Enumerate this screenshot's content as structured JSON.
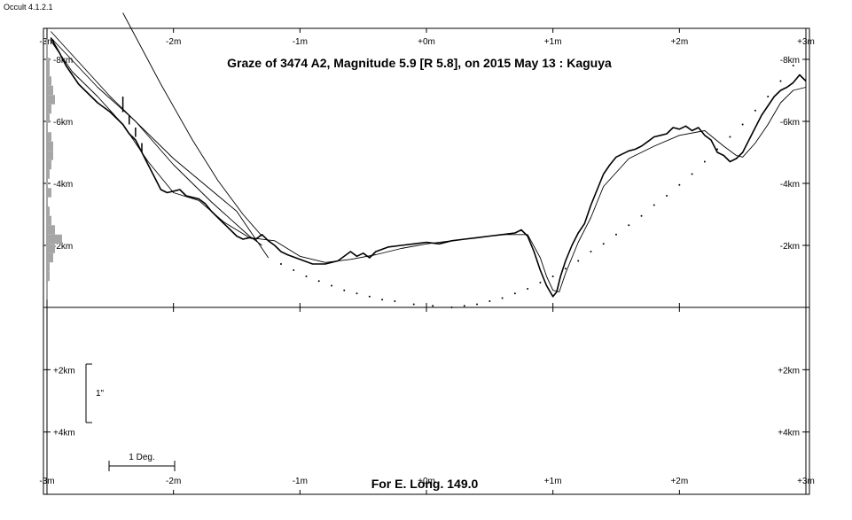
{
  "app": {
    "title": "Occult 4.1.2.1"
  },
  "chart_data": {
    "type": "line",
    "title": "Graze of  3474 A2,  Magnitude 5.9 [R 5.8],  on 2015 May 13  :  Kaguya",
    "footer": "For E. Long. 149.0",
    "x_ticks": [
      "-3m",
      "-2m",
      "-1m",
      "+0m",
      "+1m",
      "+2m",
      "+3m"
    ],
    "x_tick_values": [
      -3,
      -2,
      -1,
      0,
      1,
      2,
      3
    ],
    "xlim": [
      -3,
      3
    ],
    "upper_y_ticks": [
      "-8km",
      "-6km",
      "-4km",
      "-2km"
    ],
    "upper_y_values": [
      -8,
      -6,
      -4,
      -2
    ],
    "upper_ylim": [
      -9,
      0
    ],
    "lower_y_ticks": [
      "+2km",
      "+4km"
    ],
    "lower_y_values": [
      2,
      4
    ],
    "lower_ylim": [
      0,
      6
    ],
    "scale_bar_vertical": "1\"",
    "scale_bar_horizontal": "1 Deg.",
    "series": [
      {
        "type": "line",
        "x": [
          -2.97,
          -2.9,
          -2.85,
          -2.8,
          -2.75,
          -2.7,
          -2.6,
          -2.5,
          -2.45,
          -2.4,
          -2.35,
          -2.3,
          -2.25,
          -2.2,
          -2.15,
          -2.1,
          -2.05,
          -2.0,
          -1.95,
          -1.9,
          -1.85,
          -1.8,
          -1.75,
          -1.7,
          -1.65,
          -1.6,
          -1.55,
          -1.5,
          -1.45,
          -1.4,
          -1.35,
          -1.3,
          -1.25,
          -1.2,
          -1.15,
          -1.1,
          -1.0,
          -0.9,
          -0.8,
          -0.7,
          -0.6,
          -0.55,
          -0.5,
          -0.45,
          -0.4,
          -0.3,
          -0.2,
          -0.1,
          0.0,
          0.1,
          0.2,
          0.3,
          0.4,
          0.5,
          0.6,
          0.7,
          0.75,
          0.8,
          0.85,
          0.9,
          0.95,
          1.0,
          1.03,
          1.06,
          1.1,
          1.15,
          1.2,
          1.25,
          1.3,
          1.35,
          1.4,
          1.45,
          1.5,
          1.55,
          1.6,
          1.65,
          1.7,
          1.75,
          1.8,
          1.85,
          1.9,
          1.95,
          2.0,
          2.05,
          2.1,
          2.15,
          2.2,
          2.25,
          2.3,
          2.35,
          2.4,
          2.45,
          2.5,
          2.55,
          2.6,
          2.65,
          2.7,
          2.75,
          2.8,
          2.85,
          2.9,
          2.95,
          3.0
        ],
        "y": [
          -8.7,
          -8.2,
          -7.8,
          -7.5,
          -7.2,
          -7.0,
          -6.6,
          -6.3,
          -6.1,
          -5.9,
          -5.6,
          -5.4,
          -5.0,
          -4.6,
          -4.2,
          -3.8,
          -3.7,
          -3.75,
          -3.8,
          -3.6,
          -3.55,
          -3.5,
          -3.35,
          -3.1,
          -2.9,
          -2.7,
          -2.5,
          -2.3,
          -2.2,
          -2.25,
          -2.2,
          -2.35,
          -2.15,
          -2.0,
          -1.8,
          -1.7,
          -1.55,
          -1.4,
          -1.4,
          -1.5,
          -1.8,
          -1.65,
          -1.75,
          -1.6,
          -1.8,
          -1.95,
          -2.0,
          -2.05,
          -2.1,
          -2.05,
          -2.15,
          -2.2,
          -2.25,
          -2.3,
          -2.35,
          -2.4,
          -2.5,
          -2.3,
          -1.8,
          -1.2,
          -0.7,
          -0.35,
          -0.5,
          -1.0,
          -1.5,
          -2.0,
          -2.4,
          -2.7,
          -3.3,
          -3.8,
          -4.3,
          -4.6,
          -4.85,
          -4.95,
          -5.05,
          -5.1,
          -5.2,
          -5.35,
          -5.5,
          -5.55,
          -5.6,
          -5.8,
          -5.75,
          -5.85,
          -5.7,
          -5.8,
          -5.55,
          -5.4,
          -5.0,
          -4.9,
          -4.7,
          -4.8,
          -5.0,
          -5.4,
          -5.8,
          -6.2,
          -6.5,
          -6.8,
          -7.0,
          -7.1,
          -7.25,
          -7.5,
          -7.3
        ]
      },
      {
        "type": "smooth",
        "x": [
          -2.97,
          -2.8,
          -2.6,
          -2.4,
          -2.2,
          -2.0,
          -1.8,
          -1.6,
          -1.4,
          -1.2,
          -1.0,
          -0.8,
          -0.6,
          -0.4,
          -0.2,
          0.0,
          0.2,
          0.4,
          0.6,
          0.8,
          0.9,
          0.95,
          1.0,
          1.05,
          1.1,
          1.2,
          1.3,
          1.4,
          1.6,
          1.8,
          2.0,
          2.2,
          2.35,
          2.45,
          2.5,
          2.6,
          2.7,
          2.8,
          2.9,
          3.0
        ],
        "y": [
          -8.6,
          -7.6,
          -6.8,
          -5.9,
          -4.7,
          -3.7,
          -3.45,
          -2.75,
          -2.25,
          -2.15,
          -1.65,
          -1.45,
          -1.55,
          -1.7,
          -1.9,
          -2.05,
          -2.15,
          -2.25,
          -2.35,
          -2.35,
          -1.6,
          -1.0,
          -0.55,
          -0.5,
          -1.1,
          -2.1,
          -2.9,
          -3.9,
          -4.8,
          -5.2,
          -5.55,
          -5.7,
          -5.2,
          -4.9,
          -4.85,
          -5.3,
          -5.9,
          -6.6,
          -7.0,
          -7.1
        ]
      },
      {
        "type": "curve",
        "x": [
          -2.97,
          -2.5,
          -2.0,
          -1.5,
          -1.25
        ],
        "y": [
          -8.9,
          -6.8,
          -4.8,
          -3.1,
          -1.6
        ]
      },
      {
        "type": "curve",
        "x": [
          -2.4,
          -2.1,
          -1.85,
          -1.65,
          -1.45,
          -1.3
        ],
        "y": [
          -9.5,
          -7.2,
          -5.4,
          -4.1,
          -3.0,
          -2.3
        ]
      },
      {
        "type": "curve",
        "x": [
          -2.97,
          -2.6,
          -2.3,
          -2.0,
          -1.7,
          -1.4,
          -1.3
        ],
        "y": [
          -8.7,
          -7.1,
          -6.0,
          -4.6,
          -3.4,
          -2.3,
          -2.0
        ]
      },
      {
        "type": "dots",
        "x": [
          -1.15,
          -1.05,
          -0.95,
          -0.85,
          -0.75,
          -0.65,
          -0.55,
          -0.45,
          -0.35,
          -0.25,
          -0.1,
          0.05,
          0.2,
          0.3,
          0.4,
          0.5,
          0.6,
          0.7,
          0.8,
          0.9,
          1.0,
          1.1,
          1.2,
          1.3,
          1.4,
          1.5,
          1.6,
          1.7,
          1.8,
          1.9,
          2.0,
          2.1,
          2.2,
          2.3,
          2.4,
          2.5,
          2.6,
          2.7,
          2.8,
          2.9
        ],
        "y": [
          -1.4,
          -1.2,
          -1.0,
          -0.85,
          -0.7,
          -0.55,
          -0.45,
          -0.35,
          -0.25,
          -0.2,
          -0.1,
          -0.05,
          0.0,
          -0.05,
          -0.1,
          -0.2,
          -0.3,
          -0.45,
          -0.6,
          -0.8,
          -1.0,
          -1.25,
          -1.5,
          -1.8,
          -2.05,
          -2.35,
          -2.65,
          -2.95,
          -3.3,
          -3.6,
          -3.95,
          -4.3,
          -4.7,
          -5.1,
          -5.5,
          -5.9,
          -6.35,
          -6.8,
          -7.3,
          -7.8
        ]
      }
    ],
    "histogram": {
      "y": [
        -8.5,
        -8.2,
        -7.9,
        -7.6,
        -7.3,
        -7.0,
        -6.7,
        -6.4,
        -6.1,
        -5.8,
        -5.5,
        -5.2,
        -4.9,
        -4.6,
        -4.3,
        -4.0,
        -3.7,
        -3.4,
        -3.1,
        -2.8,
        -2.5,
        -2.2,
        -1.9,
        -1.6,
        -1.3,
        -1.0,
        -0.7,
        -0.4
      ],
      "counts": [
        1,
        1,
        2,
        2,
        3,
        4,
        5,
        3,
        2,
        1,
        3,
        4,
        4,
        3,
        2,
        1,
        3,
        1,
        2,
        3,
        5,
        9,
        5,
        4,
        2,
        2,
        1,
        1
      ]
    },
    "grid": false
  }
}
